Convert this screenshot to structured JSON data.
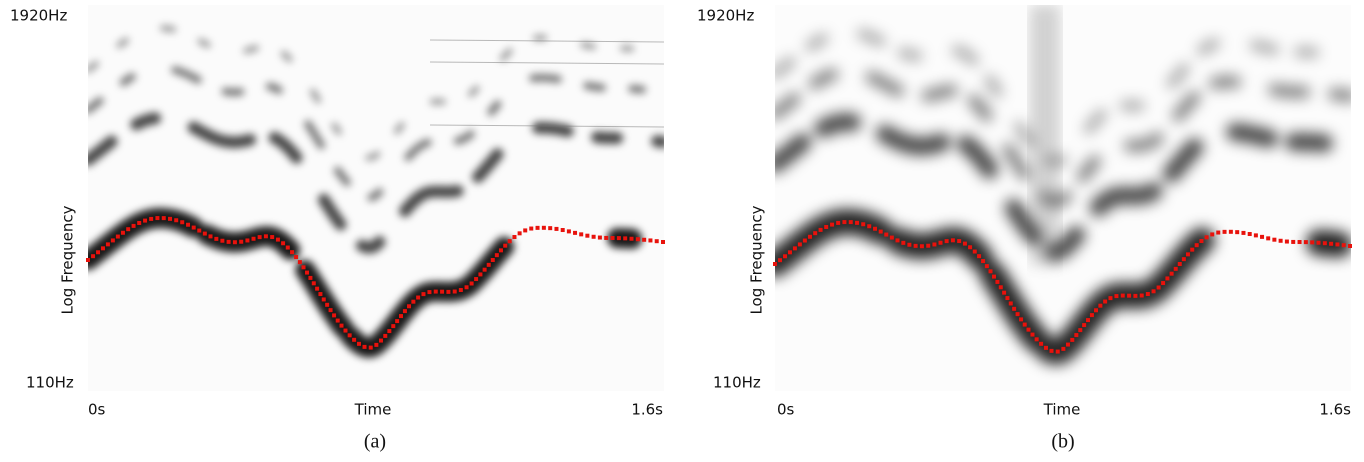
{
  "panels": [
    {
      "y_top": "1920Hz",
      "y_bottom": "110Hz",
      "y_label": "Log Frequency",
      "x_left": "0s",
      "x_mid": "Time",
      "x_right": "1.6s",
      "caption": "(a)"
    },
    {
      "y_top": "1920Hz",
      "y_bottom": "110Hz",
      "y_label": "Log Frequency",
      "x_left": "0s",
      "x_mid": "Time",
      "x_right": "1.6s",
      "caption": "(b)"
    }
  ]
}
